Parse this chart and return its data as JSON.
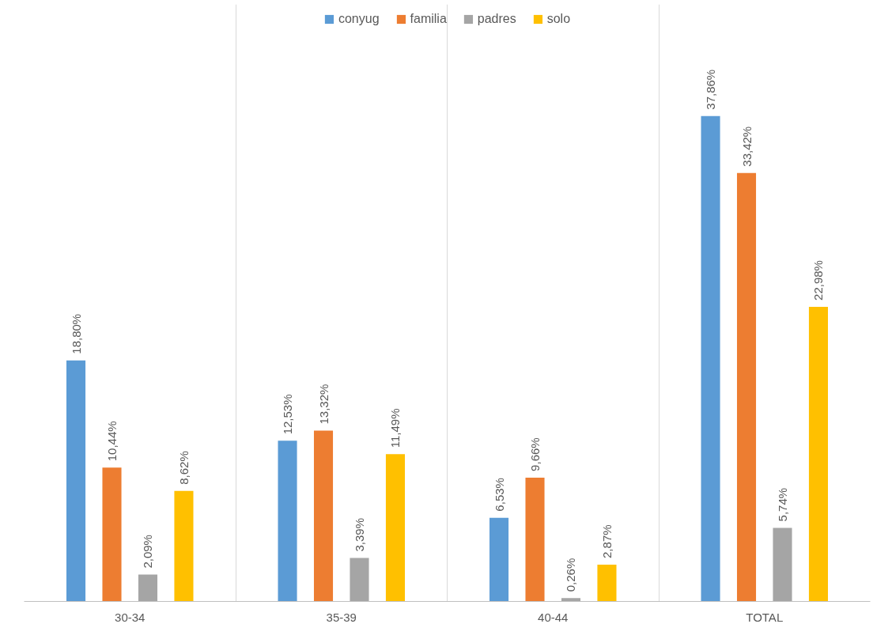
{
  "chart_data": {
    "type": "bar",
    "categories": [
      "30-34",
      "35-39",
      "40-44",
      "TOTAL"
    ],
    "series": [
      {
        "name": "conyug",
        "color": "#5b9bd5",
        "values": [
          18.8,
          12.53,
          6.53,
          37.86
        ],
        "value_labels": [
          "18,80%",
          "12,53%",
          "6,53%",
          "37,86%"
        ]
      },
      {
        "name": "familia",
        "color": "#ed7d31",
        "values": [
          10.44,
          13.32,
          9.66,
          33.42
        ],
        "value_labels": [
          "10,44%",
          "13,32%",
          "9,66%",
          "33,42%"
        ]
      },
      {
        "name": "padres",
        "color": "#a5a5a5",
        "values": [
          2.09,
          3.39,
          0.26,
          5.74
        ],
        "value_labels": [
          "2,09%",
          "3,39%",
          "0,26%",
          "5,74%"
        ]
      },
      {
        "name": "solo",
        "color": "#ffc000",
        "values": [
          8.62,
          11.49,
          2.87,
          22.98
        ],
        "value_labels": [
          "8,62%",
          "11,49%",
          "2,87%",
          "22,98%"
        ]
      }
    ],
    "grid": "x",
    "legend": "top"
  }
}
